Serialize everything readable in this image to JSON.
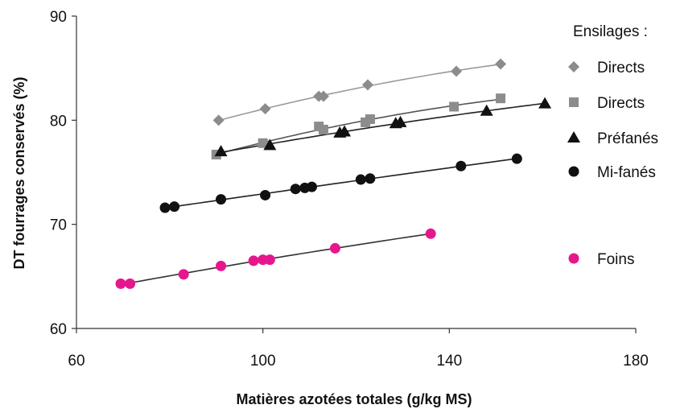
{
  "chart_data": {
    "type": "scatter",
    "xlabel": "Matières azotées totales (g/kg MS)",
    "ylabel": "DT fourrages conservés (%)",
    "xlim": [
      60,
      180
    ],
    "ylim": [
      60,
      90
    ],
    "x_ticks": [
      60,
      100,
      140,
      180
    ],
    "y_ticks": [
      60,
      70,
      80,
      90
    ],
    "grid": false,
    "legend_title": "Ensilages :",
    "legend_position": "right",
    "trendlines": true,
    "series": [
      {
        "name": "Directs",
        "marker": "diamond",
        "color": "#8c8c8c",
        "line_color": "#9a9a9a",
        "x": [
          90.5,
          100.5,
          112,
          113,
          122.5,
          141.5,
          151
        ],
        "y": [
          80.0,
          81.1,
          82.3,
          82.3,
          83.4,
          84.7,
          85.4
        ]
      },
      {
        "name": "Directs",
        "marker": "square",
        "color": "#8c8c8c",
        "line_color": "#555555",
        "x": [
          90,
          100,
          112,
          113,
          122,
          123,
          141,
          151
        ],
        "y": [
          76.7,
          77.8,
          79.4,
          79.1,
          79.8,
          80.1,
          81.3,
          82.1
        ]
      },
      {
        "name": "Préfanés",
        "marker": "triangle",
        "color": "#111111",
        "line_color": "#222222",
        "x": [
          91,
          101.5,
          116.5,
          117.5,
          128.5,
          129.5,
          148,
          160.5
        ],
        "y": [
          77.0,
          77.6,
          78.8,
          78.9,
          79.7,
          79.8,
          80.9,
          81.6
        ]
      },
      {
        "name": "Mi-fanés",
        "marker": "circle",
        "color": "#111111",
        "line_color": "#222222",
        "x": [
          79,
          81,
          91,
          100.5,
          107,
          109,
          110.5,
          121,
          123,
          142.5,
          154.5
        ],
        "y": [
          71.6,
          71.7,
          72.4,
          72.8,
          73.4,
          73.5,
          73.6,
          74.3,
          74.4,
          75.6,
          76.3
        ]
      },
      {
        "name": "Foins",
        "marker": "circle",
        "color": "#e6178d",
        "line_color": "#333333",
        "x": [
          69.5,
          71.5,
          83,
          91,
          98,
          100,
          101.5,
          115.5,
          136
        ],
        "y": [
          64.3,
          64.3,
          65.2,
          66.0,
          66.5,
          66.6,
          66.6,
          67.7,
          69.1
        ]
      }
    ]
  }
}
